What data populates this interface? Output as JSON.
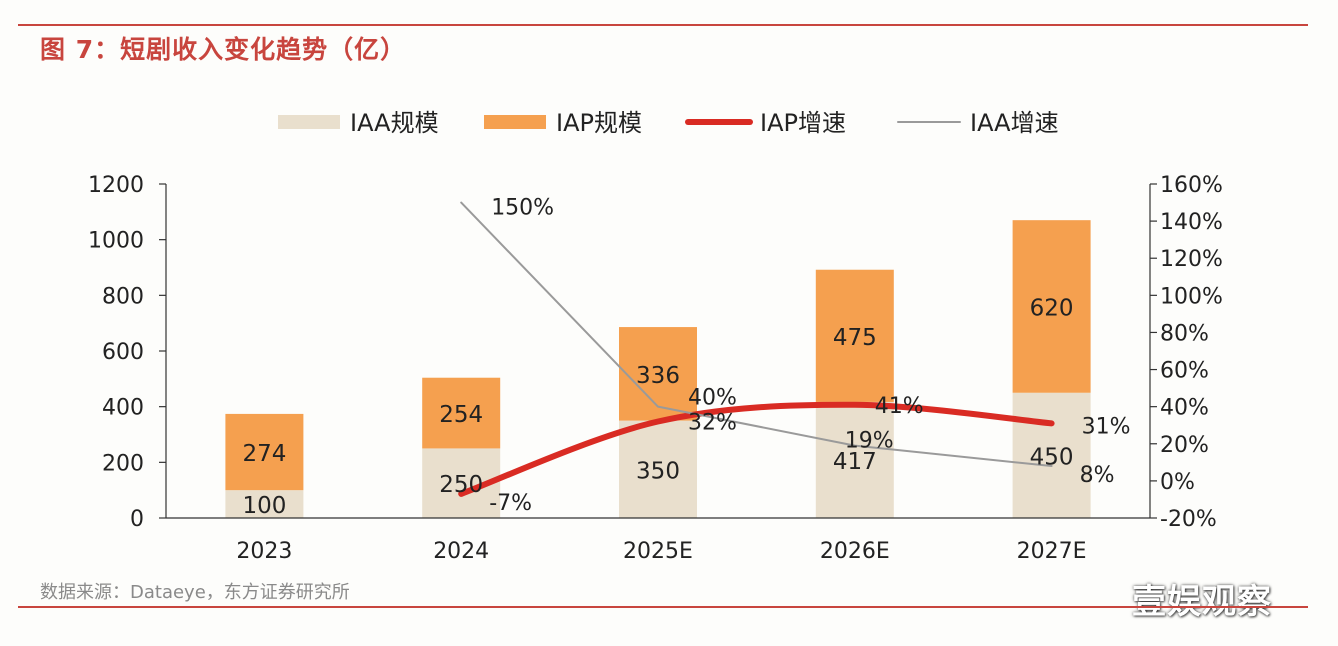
{
  "figure": {
    "title": "图 7：短剧收入变化趋势（亿）",
    "source": "数据来源：Dataeye，东方证券研究所",
    "watermark": "壹娱观察"
  },
  "chart_data": {
    "type": "bar",
    "stacked": true,
    "title": "",
    "xlabel": "",
    "ylabel": "",
    "categories": [
      "2023",
      "2024",
      "2025E",
      "2026E",
      "2027E"
    ],
    "ylim": [
      0,
      1200
    ],
    "yticks": [
      0,
      200,
      400,
      600,
      800,
      1000,
      1200
    ],
    "y2lim": [
      -20,
      160
    ],
    "y2ticks": [
      "-20%",
      "0%",
      "20%",
      "40%",
      "60%",
      "80%",
      "100%",
      "120%",
      "140%",
      "160%"
    ],
    "legend_position": "top",
    "grid": false,
    "series": [
      {
        "name": "IAA规模",
        "kind": "bar",
        "axis": "left",
        "color": "#e9dfcd",
        "values": [
          100,
          250,
          350,
          417,
          450
        ]
      },
      {
        "name": "IAP规模",
        "kind": "bar",
        "axis": "left",
        "color": "#f5a04f",
        "values": [
          274,
          254,
          336,
          475,
          620
        ]
      },
      {
        "name": "IAP增速",
        "kind": "line",
        "axis": "right",
        "color": "#d92b23",
        "values": [
          null,
          -7,
          32,
          41,
          31
        ],
        "labels": [
          "",
          "-7%",
          "32%",
          "41%",
          "31%"
        ]
      },
      {
        "name": "IAA增速",
        "kind": "line",
        "axis": "right",
        "color": "#9a9a9a",
        "values": [
          null,
          150,
          40,
          19,
          8
        ],
        "labels": [
          "",
          "150%",
          "40%",
          "19%",
          "8%"
        ]
      }
    ]
  }
}
